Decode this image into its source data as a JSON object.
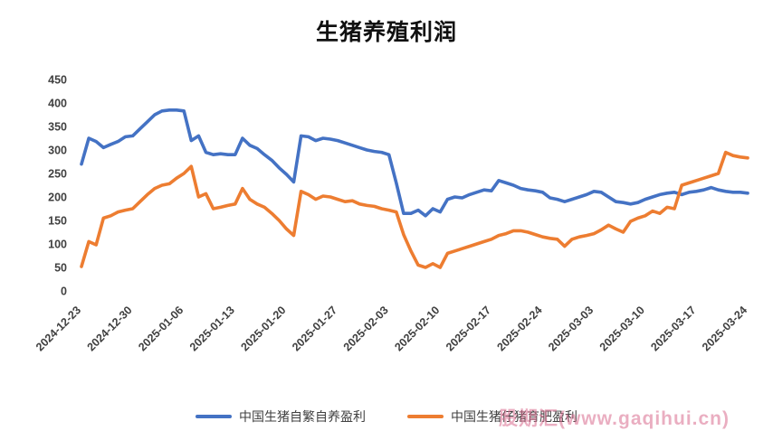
{
  "title": "生猪养殖利润",
  "watermark": {
    "text": "股期汇(www.gaqihui.cn)",
    "color": "#d96d8f"
  },
  "chart_data": {
    "type": "line",
    "title": "生猪养殖利润",
    "xlabel": "",
    "ylabel": "",
    "ylim": [
      0,
      450
    ],
    "ytick_step": 50,
    "ytick_labels": [
      "0",
      "50",
      "100",
      "150",
      "200",
      "250",
      "300",
      "350",
      "400",
      "450"
    ],
    "grid": false,
    "legend_position": "bottom",
    "x_tick_indices": [
      0,
      7,
      14,
      21,
      28,
      35,
      42,
      49,
      56,
      63,
      70,
      77,
      84,
      91
    ],
    "x_tick_labels": [
      "2024-12-23",
      "2024-12-30",
      "2025-01-06",
      "2025-01-13",
      "2025-01-20",
      "2025-01-27",
      "2025-02-03",
      "2025-02-10",
      "2025-02-17",
      "2025-02-24",
      "2025-03-03",
      "2025-03-10",
      "2025-03-17",
      "2025-03-24"
    ],
    "series": [
      {
        "name": "中国生猪自繁自养盈利",
        "color": "#4472C4",
        "values": [
          270,
          325,
          318,
          305,
          312,
          318,
          328,
          330,
          345,
          360,
          375,
          383,
          385,
          385,
          383,
          320,
          330,
          295,
          290,
          292,
          290,
          290,
          325,
          310,
          303,
          290,
          278,
          262,
          248,
          232,
          330,
          328,
          320,
          325,
          323,
          320,
          315,
          310,
          305,
          300,
          297,
          295,
          290,
          230,
          165,
          165,
          172,
          160,
          175,
          168,
          195,
          200,
          198,
          205,
          210,
          215,
          213,
          235,
          230,
          225,
          218,
          215,
          213,
          210,
          198,
          195,
          190,
          195,
          200,
          205,
          212,
          210,
          200,
          190,
          188,
          185,
          188,
          195,
          200,
          205,
          208,
          210,
          205,
          210,
          212,
          215,
          220,
          215,
          212,
          210,
          210,
          208
        ]
      },
      {
        "name": "中国生猪仔猪育肥盈利",
        "color": "#ED7D31",
        "values": [
          52,
          105,
          98,
          155,
          160,
          168,
          172,
          175,
          190,
          205,
          218,
          225,
          228,
          240,
          250,
          265,
          200,
          207,
          175,
          178,
          182,
          185,
          218,
          195,
          185,
          178,
          165,
          150,
          132,
          118,
          212,
          205,
          195,
          202,
          200,
          195,
          190,
          192,
          185,
          182,
          180,
          175,
          172,
          168,
          120,
          85,
          55,
          50,
          58,
          50,
          80,
          85,
          90,
          95,
          100,
          105,
          110,
          118,
          122,
          128,
          128,
          125,
          120,
          115,
          112,
          110,
          95,
          110,
          115,
          118,
          122,
          130,
          140,
          132,
          125,
          148,
          155,
          160,
          170,
          165,
          178,
          175,
          225,
          230,
          235,
          240,
          245,
          250,
          295,
          288,
          285,
          283
        ]
      }
    ]
  }
}
